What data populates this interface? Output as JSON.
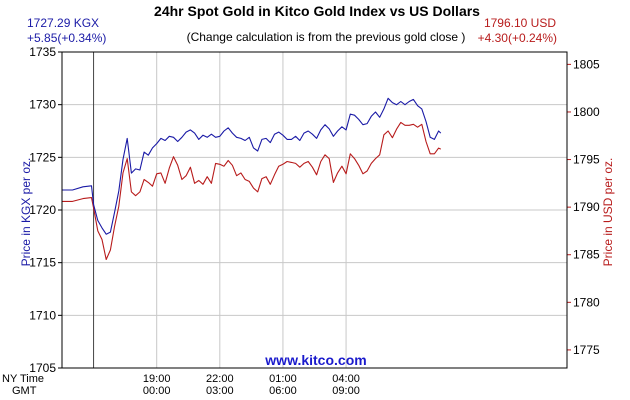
{
  "chart_data": {
    "type": "line",
    "title": "24hr Spot Gold in Kitco Gold Index vs US Dollars",
    "subtitle": "(Change calculation is from the previous gold close )",
    "watermark": "www.kitco.com",
    "left_readout": {
      "price": "1727.29 KGX",
      "change": "+5.85(+0.34%)"
    },
    "right_readout": {
      "price": "1796.10 USD",
      "change": "+4.30(+0.24%)"
    },
    "ylabel_left": "Price in KGX per oz.",
    "ylabel_right": "Price in USD per oz.",
    "ylim_left": [
      1705,
      1735
    ],
    "ylim_right": [
      1773.1,
      1806.3
    ],
    "yticks_left": [
      1705,
      1710,
      1715,
      1720,
      1725,
      1730,
      1735
    ],
    "yticks_right": [
      1775,
      1780,
      1785,
      1790,
      1795,
      1800,
      1805
    ],
    "x_range_hours": [
      0,
      24
    ],
    "x_row_labels": [
      "NY Time",
      "GMT"
    ],
    "x_ticks": [
      {
        "hour": 4.5,
        "ny": "19:00",
        "gmt": "00:00"
      },
      {
        "hour": 7.5,
        "ny": "22:00",
        "gmt": "03:00"
      },
      {
        "hour": 10.5,
        "ny": "01:00",
        "gmt": "06:00"
      },
      {
        "hour": 13.5,
        "ny": "04:00",
        "gmt": "09:00"
      }
    ],
    "x_gridline_hours": [
      4.5,
      7.5,
      10.5,
      13.5
    ],
    "market_open_hour": 1.5,
    "grid": true,
    "colors": {
      "kgx": "#1a1aa6",
      "usd": "#b81c1c",
      "grid": "#c8c8c8",
      "watermark": "#1a1acc"
    },
    "series": [
      {
        "name": "KGX",
        "axis": "left",
        "points": [
          [
            0.0,
            1721.9
          ],
          [
            0.5,
            1721.9
          ],
          [
            1.0,
            1722.2
          ],
          [
            1.4,
            1722.3
          ],
          [
            1.5,
            1720.5
          ],
          [
            1.7,
            1719.0
          ],
          [
            1.9,
            1718.3
          ],
          [
            2.1,
            1717.7
          ],
          [
            2.3,
            1717.9
          ],
          [
            2.5,
            1719.8
          ],
          [
            2.7,
            1721.8
          ],
          [
            2.9,
            1724.8
          ],
          [
            3.1,
            1726.8
          ],
          [
            3.3,
            1723.5
          ],
          [
            3.5,
            1723.9
          ],
          [
            3.7,
            1723.8
          ],
          [
            3.9,
            1725.5
          ],
          [
            4.1,
            1725.2
          ],
          [
            4.3,
            1725.9
          ],
          [
            4.5,
            1726.3
          ],
          [
            4.7,
            1726.8
          ],
          [
            4.9,
            1726.6
          ],
          [
            5.1,
            1727.0
          ],
          [
            5.3,
            1726.9
          ],
          [
            5.5,
            1726.5
          ],
          [
            5.7,
            1726.9
          ],
          [
            5.9,
            1727.4
          ],
          [
            6.1,
            1727.6
          ],
          [
            6.3,
            1727.3
          ],
          [
            6.5,
            1726.7
          ],
          [
            6.7,
            1727.1
          ],
          [
            6.9,
            1726.9
          ],
          [
            7.1,
            1727.2
          ],
          [
            7.3,
            1726.9
          ],
          [
            7.5,
            1727.0
          ],
          [
            7.7,
            1727.5
          ],
          [
            7.9,
            1727.8
          ],
          [
            8.1,
            1727.3
          ],
          [
            8.3,
            1726.9
          ],
          [
            8.5,
            1726.8
          ],
          [
            8.7,
            1726.6
          ],
          [
            8.9,
            1726.9
          ],
          [
            9.1,
            1725.9
          ],
          [
            9.3,
            1725.6
          ],
          [
            9.5,
            1726.7
          ],
          [
            9.7,
            1726.8
          ],
          [
            9.9,
            1726.4
          ],
          [
            10.1,
            1727.2
          ],
          [
            10.3,
            1727.4
          ],
          [
            10.5,
            1727.1
          ],
          [
            10.7,
            1726.7
          ],
          [
            10.9,
            1726.7
          ],
          [
            11.1,
            1727.0
          ],
          [
            11.3,
            1726.6
          ],
          [
            11.5,
            1727.3
          ],
          [
            11.7,
            1727.5
          ],
          [
            11.9,
            1727.2
          ],
          [
            12.1,
            1726.8
          ],
          [
            12.3,
            1727.6
          ],
          [
            12.5,
            1728.1
          ],
          [
            12.7,
            1727.7
          ],
          [
            12.9,
            1727.0
          ],
          [
            13.1,
            1727.5
          ],
          [
            13.3,
            1727.9
          ],
          [
            13.5,
            1727.6
          ],
          [
            13.7,
            1729.1
          ],
          [
            13.9,
            1729.0
          ],
          [
            14.1,
            1728.6
          ],
          [
            14.3,
            1728.1
          ],
          [
            14.5,
            1728.2
          ],
          [
            14.7,
            1728.9
          ],
          [
            14.9,
            1729.3
          ],
          [
            15.1,
            1728.8
          ],
          [
            15.3,
            1729.6
          ],
          [
            15.5,
            1730.6
          ],
          [
            15.7,
            1730.2
          ],
          [
            15.9,
            1730.0
          ],
          [
            16.1,
            1730.3
          ],
          [
            16.3,
            1730.0
          ],
          [
            16.5,
            1730.3
          ],
          [
            16.7,
            1730.5
          ],
          [
            16.9,
            1729.9
          ],
          [
            17.1,
            1729.6
          ],
          [
            17.3,
            1728.4
          ],
          [
            17.5,
            1726.9
          ],
          [
            17.7,
            1726.7
          ],
          [
            17.9,
            1727.5
          ],
          [
            18.0,
            1727.3
          ]
        ]
      },
      {
        "name": "USD",
        "axis": "right",
        "points": [
          [
            0.0,
            1790.6
          ],
          [
            0.5,
            1790.6
          ],
          [
            1.0,
            1790.9
          ],
          [
            1.4,
            1791.0
          ],
          [
            1.5,
            1789.9
          ],
          [
            1.7,
            1787.5
          ],
          [
            1.9,
            1786.6
          ],
          [
            2.1,
            1784.5
          ],
          [
            2.3,
            1785.5
          ],
          [
            2.5,
            1788.0
          ],
          [
            2.7,
            1790.1
          ],
          [
            2.9,
            1793.6
          ],
          [
            3.1,
            1795.1
          ],
          [
            3.3,
            1791.6
          ],
          [
            3.5,
            1791.2
          ],
          [
            3.7,
            1791.6
          ],
          [
            3.9,
            1792.9
          ],
          [
            4.1,
            1792.6
          ],
          [
            4.3,
            1792.2
          ],
          [
            4.5,
            1793.5
          ],
          [
            4.7,
            1793.6
          ],
          [
            4.9,
            1792.5
          ],
          [
            5.1,
            1794.1
          ],
          [
            5.3,
            1795.3
          ],
          [
            5.5,
            1794.4
          ],
          [
            5.7,
            1792.9
          ],
          [
            5.9,
            1793.3
          ],
          [
            6.1,
            1794.2
          ],
          [
            6.3,
            1792.5
          ],
          [
            6.5,
            1792.8
          ],
          [
            6.7,
            1792.4
          ],
          [
            6.9,
            1793.2
          ],
          [
            7.1,
            1792.5
          ],
          [
            7.3,
            1794.6
          ],
          [
            7.5,
            1794.5
          ],
          [
            7.7,
            1794.3
          ],
          [
            7.9,
            1794.9
          ],
          [
            8.1,
            1794.4
          ],
          [
            8.3,
            1793.3
          ],
          [
            8.5,
            1793.6
          ],
          [
            8.7,
            1792.9
          ],
          [
            8.9,
            1792.7
          ],
          [
            9.1,
            1792.0
          ],
          [
            9.3,
            1791.6
          ],
          [
            9.5,
            1793.0
          ],
          [
            9.7,
            1793.2
          ],
          [
            9.9,
            1792.4
          ],
          [
            10.1,
            1793.4
          ],
          [
            10.3,
            1794.3
          ],
          [
            10.5,
            1794.5
          ],
          [
            10.7,
            1794.8
          ],
          [
            10.9,
            1794.7
          ],
          [
            11.1,
            1794.6
          ],
          [
            11.3,
            1794.2
          ],
          [
            11.5,
            1794.6
          ],
          [
            11.7,
            1794.8
          ],
          [
            11.9,
            1794.2
          ],
          [
            12.1,
            1793.4
          ],
          [
            12.3,
            1794.8
          ],
          [
            12.5,
            1795.5
          ],
          [
            12.7,
            1795.1
          ],
          [
            12.9,
            1792.6
          ],
          [
            13.1,
            1793.6
          ],
          [
            13.3,
            1794.3
          ],
          [
            13.5,
            1793.5
          ],
          [
            13.7,
            1795.6
          ],
          [
            13.9,
            1795.1
          ],
          [
            14.1,
            1794.4
          ],
          [
            14.3,
            1793.5
          ],
          [
            14.5,
            1793.8
          ],
          [
            14.7,
            1794.6
          ],
          [
            14.9,
            1795.1
          ],
          [
            15.1,
            1795.5
          ],
          [
            15.3,
            1797.6
          ],
          [
            15.5,
            1798.0
          ],
          [
            15.7,
            1797.3
          ],
          [
            15.9,
            1798.2
          ],
          [
            16.1,
            1798.9
          ],
          [
            16.3,
            1798.6
          ],
          [
            16.5,
            1798.6
          ],
          [
            16.7,
            1798.7
          ],
          [
            16.9,
            1798.4
          ],
          [
            17.1,
            1798.7
          ],
          [
            17.3,
            1796.9
          ],
          [
            17.5,
            1795.6
          ],
          [
            17.7,
            1795.6
          ],
          [
            17.9,
            1796.2
          ],
          [
            18.0,
            1796.1
          ]
        ]
      }
    ]
  }
}
